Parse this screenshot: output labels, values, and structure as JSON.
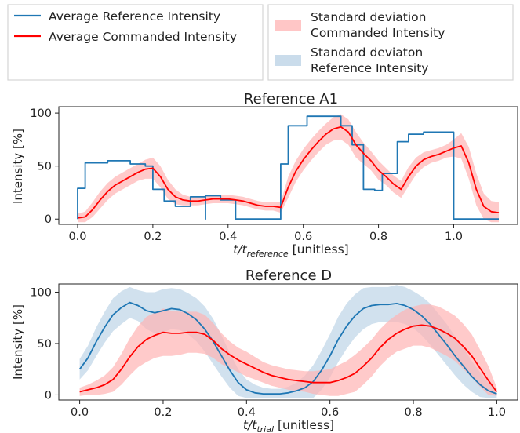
{
  "legend": {
    "left": [
      {
        "label": "Average Reference Intensity",
        "color": "#1f77b4",
        "kind": "line"
      },
      {
        "label": "Average Commanded Intensity",
        "color": "#ff0000",
        "kind": "line"
      }
    ],
    "right": [
      {
        "label_lines": [
          "Standard deviation",
          "Commanded Intensity"
        ],
        "color": "#ffb3b3",
        "kind": "band"
      },
      {
        "label_lines": [
          "Standard deviaton",
          "Reference Intensity"
        ],
        "color": "#b3cde3",
        "kind": "band"
      }
    ]
  },
  "colors": {
    "reference": "#1f77b4",
    "commanded": "#ff0000",
    "commanded_band": "#ffb3b3",
    "reference_band": "#b3cde3"
  },
  "chart_data": [
    {
      "type": "line",
      "title": "Reference A1",
      "xlabel_main": "t/t",
      "xlabel_sub": "reference",
      "xlabel_unit": " [unitless]",
      "ylabel": "Intensity [%]",
      "xlim": [
        -0.05,
        1.17
      ],
      "ylim": [
        -5,
        106
      ],
      "xticks": [
        0.0,
        0.2,
        0.4,
        0.6,
        0.8,
        1.0,
        1.2
      ],
      "xtick_labels": [
        "0.0",
        "0.2",
        "0.4",
        "0.6",
        "0.8",
        "1.0",
        "1.2"
      ],
      "yticks": [
        0,
        50,
        100
      ],
      "ytick_labels": [
        "0",
        "50",
        "100"
      ],
      "series": [
        {
          "role": "reference",
          "step": true,
          "x": [
            0.0,
            0.0,
            0.02,
            0.02,
            0.08,
            0.08,
            0.14,
            0.14,
            0.18,
            0.18,
            0.2,
            0.2,
            0.23,
            0.23,
            0.26,
            0.26,
            0.3,
            0.3,
            0.34,
            0.34,
            0.34,
            0.34,
            0.38,
            0.38,
            0.42,
            0.42,
            0.54,
            0.54,
            0.56,
            0.56,
            0.61,
            0.61,
            0.7,
            0.7,
            0.73,
            0.73,
            0.76,
            0.76,
            0.79,
            0.79,
            0.81,
            0.81,
            0.85,
            0.85,
            0.88,
            0.88,
            0.92,
            0.92,
            0.99,
            0.99,
            1.0,
            1.0,
            1.12
          ],
          "y": [
            0,
            29,
            29,
            53,
            53,
            55,
            55,
            52,
            52,
            50,
            50,
            28,
            28,
            17,
            17,
            12,
            12,
            21,
            21,
            0,
            0,
            22,
            22,
            18,
            18,
            0,
            0,
            52,
            52,
            88,
            88,
            97,
            97,
            88,
            88,
            70,
            70,
            28,
            28,
            27,
            27,
            43,
            43,
            73,
            73,
            80,
            80,
            82,
            82,
            82,
            82,
            0,
            0
          ]
        },
        {
          "role": "commanded",
          "x": [
            0.0,
            0.02,
            0.04,
            0.06,
            0.08,
            0.1,
            0.12,
            0.14,
            0.16,
            0.18,
            0.2,
            0.22,
            0.24,
            0.26,
            0.28,
            0.3,
            0.32,
            0.34,
            0.36,
            0.38,
            0.4,
            0.42,
            0.44,
            0.46,
            0.48,
            0.5,
            0.52,
            0.54,
            0.56,
            0.58,
            0.6,
            0.62,
            0.64,
            0.66,
            0.68,
            0.7,
            0.72,
            0.74,
            0.76,
            0.78,
            0.8,
            0.82,
            0.84,
            0.86,
            0.88,
            0.9,
            0.92,
            0.94,
            0.96,
            0.98,
            1.0,
            1.02,
            1.04,
            1.06,
            1.08,
            1.1,
            1.12
          ],
          "y": [
            1,
            2,
            9,
            18,
            26,
            32,
            36,
            40,
            44,
            47,
            48,
            40,
            28,
            21,
            18,
            17,
            17,
            18,
            19,
            19,
            19,
            18,
            17,
            15,
            13,
            12,
            12,
            11,
            30,
            45,
            56,
            65,
            73,
            80,
            85,
            87,
            82,
            70,
            62,
            55,
            46,
            40,
            33,
            28,
            40,
            50,
            56,
            59,
            61,
            64,
            67,
            69,
            53,
            28,
            12,
            7,
            6
          ],
          "band": [
            4,
            5,
            7,
            8,
            8,
            8,
            8,
            8,
            8,
            9,
            10,
            10,
            9,
            7,
            5,
            4,
            4,
            4,
            4,
            4,
            4,
            4,
            4,
            4,
            4,
            4,
            4,
            5,
            10,
            10,
            10,
            10,
            10,
            10,
            11,
            12,
            12,
            12,
            10,
            9,
            9,
            8,
            8,
            8,
            9,
            8,
            7,
            6,
            6,
            6,
            8,
            12,
            15,
            15,
            12,
            10,
            10
          ]
        }
      ]
    },
    {
      "type": "line",
      "title": "Reference D",
      "xlabel_main": "t/t",
      "xlabel_sub": "trial",
      "xlabel_unit": " [unitless]",
      "ylabel": "Intensity [%]",
      "xlim": [
        -0.05,
        1.05
      ],
      "ylim": [
        -5,
        108
      ],
      "xticks": [
        0.0,
        0.2,
        0.4,
        0.6,
        0.8,
        1.0
      ],
      "xtick_labels": [
        "0.0",
        "0.2",
        "0.4",
        "0.6",
        "0.8",
        "1.0"
      ],
      "yticks": [
        0,
        50,
        100
      ],
      "ytick_labels": [
        "0",
        "50",
        "100"
      ],
      "series": [
        {
          "role": "reference",
          "x": [
            0.0,
            0.02,
            0.04,
            0.06,
            0.08,
            0.1,
            0.12,
            0.14,
            0.16,
            0.18,
            0.2,
            0.22,
            0.24,
            0.26,
            0.28,
            0.3,
            0.32,
            0.34,
            0.36,
            0.38,
            0.4,
            0.42,
            0.44,
            0.46,
            0.48,
            0.5,
            0.52,
            0.54,
            0.56,
            0.58,
            0.6,
            0.62,
            0.64,
            0.66,
            0.68,
            0.7,
            0.72,
            0.74,
            0.76,
            0.78,
            0.8,
            0.82,
            0.84,
            0.86,
            0.88,
            0.9,
            0.92,
            0.94,
            0.96,
            0.98,
            1.0
          ],
          "y": [
            25,
            36,
            52,
            66,
            78,
            85,
            90,
            87,
            82,
            80,
            82,
            84,
            83,
            79,
            73,
            64,
            52,
            38,
            24,
            12,
            5,
            2,
            1,
            1,
            1,
            2,
            4,
            7,
            13,
            24,
            38,
            54,
            67,
            77,
            84,
            87,
            88,
            88,
            89,
            87,
            83,
            77,
            69,
            59,
            49,
            38,
            28,
            18,
            10,
            4,
            1
          ],
          "band": [
            10,
            12,
            14,
            15,
            16,
            16,
            15,
            15,
            18,
            20,
            21,
            20,
            20,
            20,
            21,
            22,
            22,
            20,
            17,
            13,
            10,
            8,
            6,
            5,
            5,
            6,
            8,
            12,
            16,
            19,
            21,
            22,
            22,
            21,
            20,
            18,
            17,
            17,
            18,
            18,
            18,
            19,
            20,
            20,
            20,
            19,
            18,
            15,
            12,
            8,
            5
          ]
        },
        {
          "role": "commanded",
          "x": [
            0.0,
            0.02,
            0.04,
            0.06,
            0.08,
            0.1,
            0.12,
            0.14,
            0.16,
            0.18,
            0.2,
            0.22,
            0.24,
            0.26,
            0.28,
            0.3,
            0.32,
            0.34,
            0.36,
            0.38,
            0.4,
            0.42,
            0.44,
            0.46,
            0.48,
            0.5,
            0.52,
            0.54,
            0.56,
            0.58,
            0.6,
            0.62,
            0.64,
            0.66,
            0.68,
            0.7,
            0.72,
            0.74,
            0.76,
            0.78,
            0.8,
            0.82,
            0.84,
            0.86,
            0.88,
            0.9,
            0.92,
            0.94,
            0.96,
            0.98,
            1.0
          ],
          "y": [
            3,
            5,
            7,
            10,
            15,
            25,
            37,
            47,
            54,
            58,
            61,
            60,
            60,
            61,
            61,
            59,
            53,
            45,
            39,
            34,
            30,
            26,
            22,
            19,
            17,
            15,
            14,
            13,
            12,
            12,
            12,
            14,
            17,
            21,
            28,
            36,
            46,
            54,
            60,
            64,
            67,
            68,
            67,
            64,
            60,
            55,
            47,
            38,
            26,
            14,
            3
          ],
          "band": [
            4,
            5,
            7,
            9,
            12,
            15,
            18,
            20,
            22,
            22,
            23,
            22,
            21,
            20,
            20,
            19,
            17,
            15,
            13,
            12,
            12,
            11,
            10,
            10,
            10,
            10,
            10,
            10,
            11,
            12,
            13,
            15,
            16,
            18,
            18,
            18,
            18,
            18,
            18,
            19,
            19,
            20,
            21,
            22,
            22,
            22,
            22,
            21,
            18,
            14,
            4
          ]
        }
      ]
    }
  ]
}
